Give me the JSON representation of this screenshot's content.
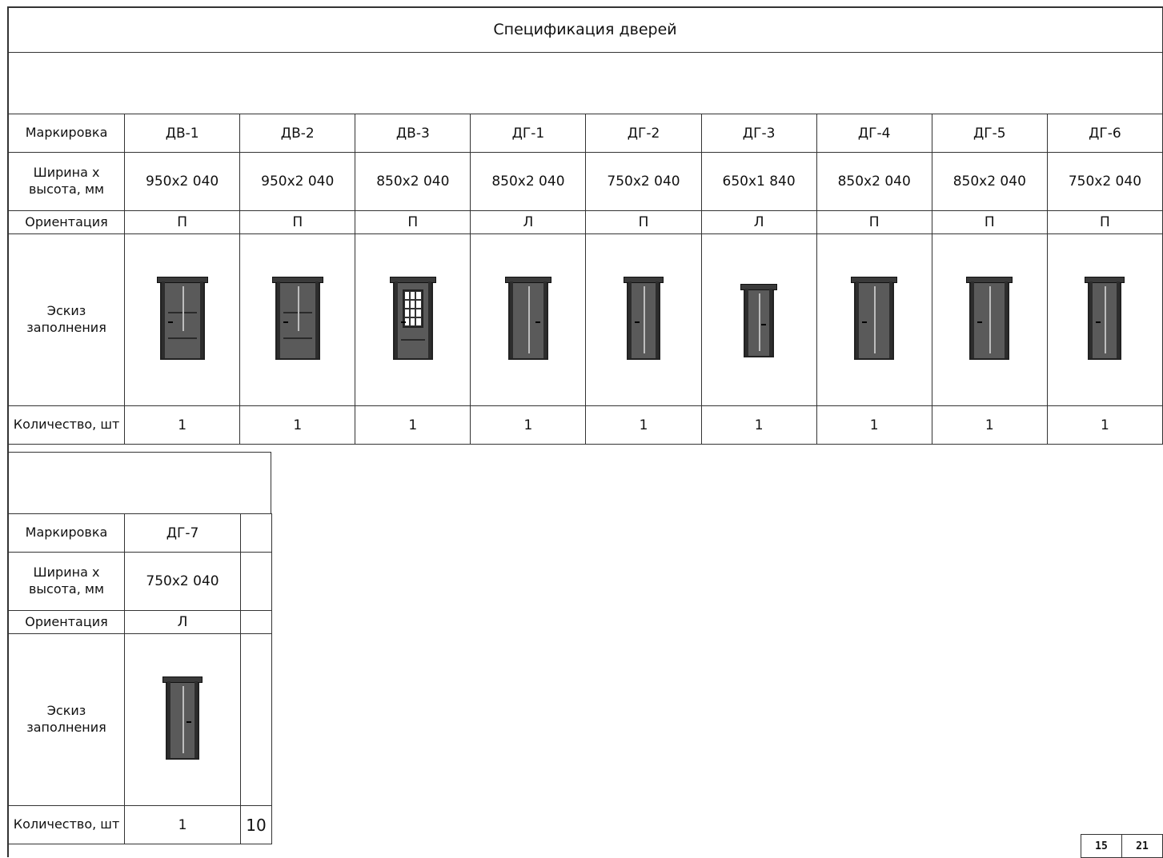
{
  "title": "Спецификация дверей",
  "row_labels": {
    "marking": "Маркировка",
    "size": "Ширина х высота, мм",
    "orientation": "Ориентация",
    "sketch": "Эскиз заполнения",
    "quantity": "Количество, шт"
  },
  "table1": [
    {
      "mark": "ДВ-1",
      "size": "950х2 040",
      "orient": "П",
      "qty": "1",
      "style": "panel",
      "handle": "left"
    },
    {
      "mark": "ДВ-2",
      "size": "950х2 040",
      "orient": "П",
      "qty": "1",
      "style": "panel",
      "handle": "left"
    },
    {
      "mark": "ДВ-3",
      "size": "850х2 040",
      "orient": "П",
      "qty": "1",
      "style": "glass",
      "handle": "left"
    },
    {
      "mark": "ДГ-1",
      "size": "850х2 040",
      "orient": "Л",
      "qty": "1",
      "style": "flat",
      "handle": "right"
    },
    {
      "mark": "ДГ-2",
      "size": "750х2 040",
      "orient": "П",
      "qty": "1",
      "style": "flat",
      "handle": "left"
    },
    {
      "mark": "ДГ-3",
      "size": "650х1 840",
      "orient": "Л",
      "qty": "1",
      "style": "flat",
      "handle": "right"
    },
    {
      "mark": "ДГ-4",
      "size": "850х2 040",
      "orient": "П",
      "qty": "1",
      "style": "flat",
      "handle": "left"
    },
    {
      "mark": "ДГ-5",
      "size": "850х2 040",
      "orient": "П",
      "qty": "1",
      "style": "flat",
      "handle": "left"
    },
    {
      "mark": "ДГ-6",
      "size": "750х2 040",
      "orient": "П",
      "qty": "1",
      "style": "flat",
      "handle": "left"
    }
  ],
  "table2": [
    {
      "mark": "ДГ-7",
      "size": "750х2 040",
      "orient": "Л",
      "qty": "1",
      "style": "flat",
      "handle": "right"
    }
  ],
  "total": "10",
  "page_boxes": [
    "15",
    "21"
  ]
}
